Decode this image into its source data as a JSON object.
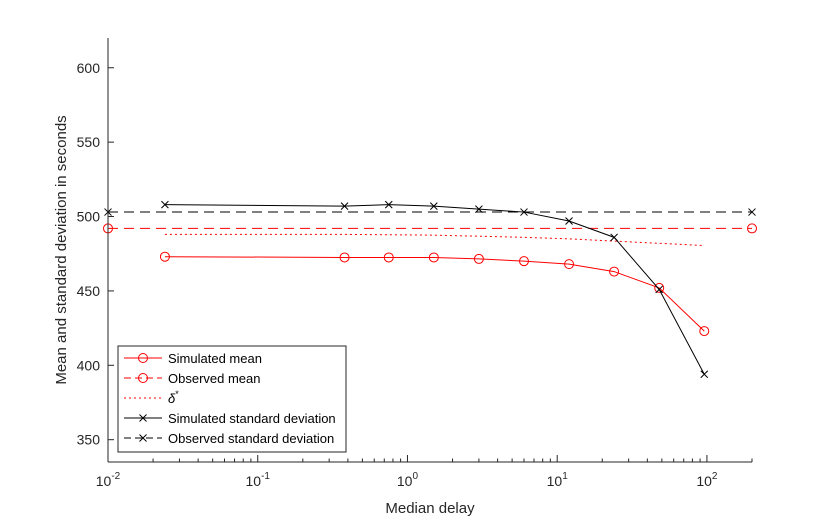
{
  "chart_data": {
    "type": "line",
    "xlabel": "Median delay",
    "ylabel": "Mean and standard deviation in seconds",
    "xscale": "log",
    "xlim": [
      0.01,
      200
    ],
    "ylim": [
      335,
      620
    ],
    "x_ticks": [
      {
        "value": 0.01,
        "base": "10",
        "exp": "-2"
      },
      {
        "value": 0.1,
        "base": "10",
        "exp": "-1"
      },
      {
        "value": 1,
        "base": "10",
        "exp": "0"
      },
      {
        "value": 10,
        "base": "10",
        "exp": "1"
      },
      {
        "value": 100,
        "base": "10",
        "exp": "2"
      }
    ],
    "y_ticks": [
      350,
      400,
      450,
      500,
      550,
      600
    ],
    "grid": false,
    "legend_position": "bottom-left",
    "series": [
      {
        "name": "Simulated mean",
        "color": "#ff0000",
        "line": "solid",
        "marker": "circle",
        "points": [
          [
            0.024,
            473
          ],
          [
            0.38,
            472.5
          ],
          [
            0.75,
            472.5
          ],
          [
            1.5,
            472.5
          ],
          [
            3,
            471.5
          ],
          [
            6,
            470
          ],
          [
            12,
            468
          ],
          [
            24,
            463
          ],
          [
            48,
            452
          ],
          [
            96,
            423
          ]
        ]
      },
      {
        "name": "Observed mean",
        "color": "#ff0000",
        "line": "dashed",
        "marker": "circle",
        "points": [
          [
            0.01,
            492
          ],
          [
            200,
            492
          ]
        ]
      },
      {
        "name": "δ*",
        "color": "#ff0000",
        "line": "dotted",
        "marker": "none",
        "points": [
          [
            0.024,
            488
          ],
          [
            0.38,
            488
          ],
          [
            1.5,
            487.5
          ],
          [
            6,
            486
          ],
          [
            12,
            485
          ],
          [
            24,
            483.5
          ],
          [
            48,
            482
          ],
          [
            96,
            480.5
          ]
        ]
      },
      {
        "name": "Simulated standard deviation",
        "color": "#000000",
        "line": "solid",
        "marker": "x",
        "points": [
          [
            0.024,
            508
          ],
          [
            0.38,
            507
          ],
          [
            0.75,
            508
          ],
          [
            1.5,
            507
          ],
          [
            3,
            505
          ],
          [
            6,
            503
          ],
          [
            12,
            497
          ],
          [
            24,
            486
          ],
          [
            48,
            451
          ],
          [
            96,
            394
          ]
        ]
      },
      {
        "name": "Observed standard deviation",
        "color": "#000000",
        "line": "dashed",
        "marker": "x",
        "points": [
          [
            0.01,
            503
          ],
          [
            200,
            503
          ]
        ]
      }
    ]
  }
}
